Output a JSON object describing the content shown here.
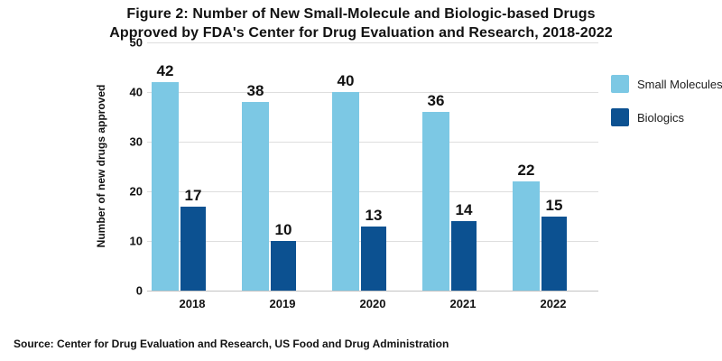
{
  "title": {
    "line1": "Figure 2: Number of New Small-Molecule and Biologic-based Drugs",
    "line2": "Approved by FDA's Center for Drug Evaluation and Research, 2018-2022"
  },
  "source": "Source: Center for Drug Evaluation and Research, US Food and Drug Administration",
  "chart_data": {
    "type": "bar",
    "title": "Figure 2: Number of New Small-Molecule and Biologic-based Drugs Approved by FDA's Center for Drug Evaluation and Research, 2018-2022",
    "categories": [
      "2018",
      "2019",
      "2020",
      "2021",
      "2022"
    ],
    "series": [
      {
        "name": "Small Molecules",
        "color": "#7cc8e4",
        "values": [
          42,
          38,
          40,
          36,
          22
        ]
      },
      {
        "name": "Biologics",
        "color": "#0c5191",
        "values": [
          17,
          10,
          13,
          14,
          15
        ]
      }
    ],
    "xlabel": "",
    "ylabel": "Number of new drugs approved",
    "ylim": [
      0,
      50
    ],
    "yticks": [
      0,
      10,
      20,
      30,
      40,
      50
    ],
    "grid": true,
    "legend_position": "right",
    "value_labels": true
  },
  "colors": {
    "gridline": "#dedede",
    "baseline": "#c2c2c2",
    "text": "#121212",
    "background": "#ffffff"
  }
}
